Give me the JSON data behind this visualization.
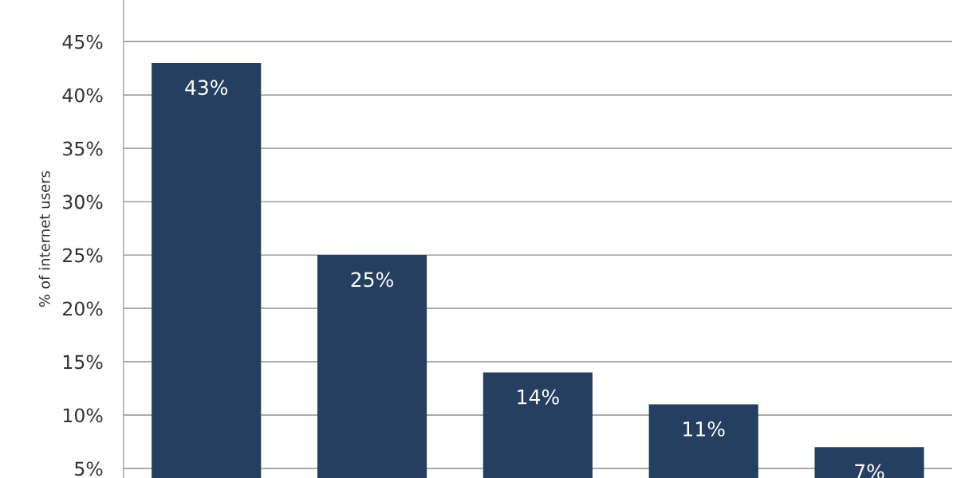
{
  "chart_data": {
    "type": "bar",
    "ylabel": "% of internet users",
    "categories": [
      null,
      null,
      null,
      null,
      null
    ],
    "values": [
      43,
      25,
      14,
      11,
      7
    ],
    "color": "#243f60",
    "value_labels": [
      "43%",
      "25%",
      "14%",
      "11%",
      "7%"
    ],
    "ylim": [
      4.1,
      48.9
    ],
    "yticks": [
      {
        "value": 5,
        "label": "5%"
      },
      {
        "value": 10,
        "label": "10%"
      },
      {
        "value": 15,
        "label": "15%"
      },
      {
        "value": 20,
        "label": "20%"
      },
      {
        "value": 25,
        "label": "25%"
      },
      {
        "value": 30,
        "label": "30%"
      },
      {
        "value": 35,
        "label": "35%"
      },
      {
        "value": 40,
        "label": "40%"
      },
      {
        "value": 45,
        "label": "45%"
      }
    ],
    "grid": "y",
    "legend": false
  }
}
